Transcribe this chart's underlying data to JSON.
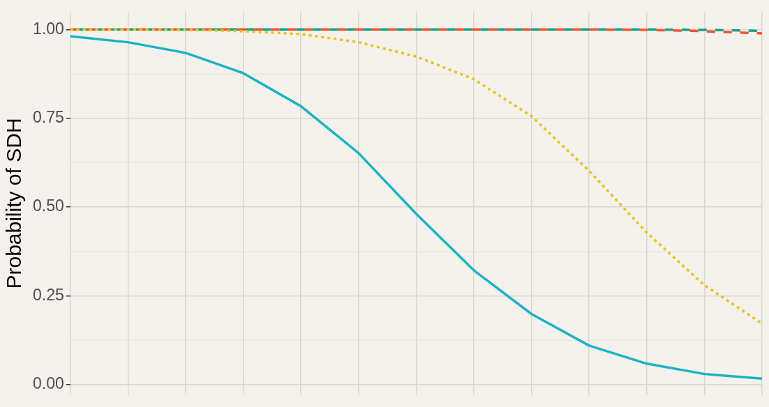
{
  "chart_data": {
    "type": "line",
    "ylabel": "Probability of SDH",
    "categories": [
      null,
      null,
      null,
      null,
      null,
      null,
      null,
      null,
      null,
      null,
      null,
      null,
      null
    ],
    "series": [
      {
        "color": "#1bb3c4",
        "line_style": "solid",
        "values": [
          0.981,
          0.964,
          0.934,
          0.877,
          0.784,
          0.652,
          0.481,
          0.322,
          0.199,
          0.11,
          0.059,
          0.03,
          0.017
        ]
      },
      {
        "color": "#e6c619",
        "line_style": "dotted",
        "values": [
          1.0,
          1.0,
          0.999,
          0.995,
          0.987,
          0.964,
          0.924,
          0.86,
          0.756,
          0.602,
          0.428,
          0.28,
          0.172
        ]
      },
      {
        "color": "#f2542d",
        "line_style": "dashed",
        "values": [
          1.0,
          1.0,
          1.0,
          1.0,
          1.0,
          1.0,
          1.0,
          1.0,
          1.0,
          1.0,
          0.999,
          0.995,
          0.989
        ]
      },
      {
        "color": "#13a08a",
        "line_style": "dashed",
        "values": [
          1.0,
          1.0,
          1.0,
          1.0,
          1.0,
          1.0,
          1.0,
          1.0,
          1.0,
          1.0,
          1.0,
          0.999,
          0.996
        ]
      }
    ],
    "ylim": [
      -0.03,
      1.05
    ],
    "yticks": [
      {
        "value": 0,
        "label": "0.00"
      },
      {
        "value": 0.25,
        "label": "0.25"
      },
      {
        "value": 0.5,
        "label": "0.50"
      },
      {
        "value": 0.75,
        "label": "0.75"
      },
      {
        "value": 1,
        "label": "1.00"
      }
    ],
    "grid": true,
    "legend": false,
    "tick_labels": "y",
    "marker": "none"
  }
}
